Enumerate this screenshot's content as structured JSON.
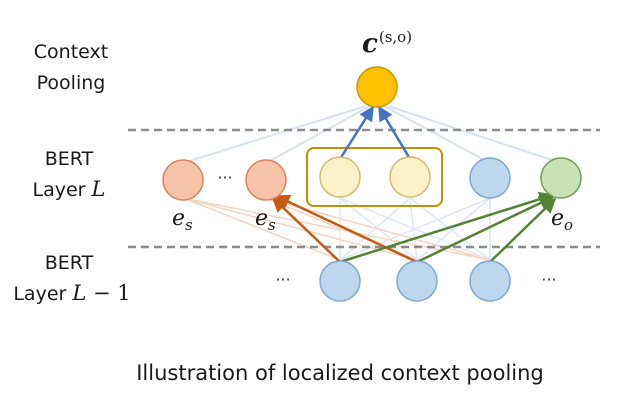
{
  "diagram": {
    "labels": {
      "context_pooling": [
        "Context",
        "Pooling"
      ],
      "bert_layer_l": [
        "BERT",
        "Layer"
      ],
      "bert_layer_l_minus_1": [
        "BERT",
        "Layer"
      ]
    },
    "math": {
      "layer_l_var": "L",
      "layer_l_minus_1_var": "L",
      "layer_l_minus_1_op": " − 1",
      "context_vector_base": "c",
      "context_vector_sup": "(s,o)",
      "es_base": "e",
      "es_sub": "s",
      "eo_base": "e",
      "eo_sub": "o"
    },
    "ellipsis": "···",
    "caption": "Illustration of localized context pooling",
    "colors": {
      "context_node": "#FFC000",
      "context_node_stroke": "#C99700",
      "subject_node": "#F7C3A8",
      "subject_node_stroke": "#D8825A",
      "attended_node": "#FFF1C7",
      "attended_node_stroke": "#D7B86B",
      "plain_node": "#BDD7EE",
      "plain_node_stroke": "#7FA7CF",
      "object_node": "#C7E2B4",
      "object_node_stroke": "#6E9E52",
      "pool_arrow": "#4472C4",
      "subject_arrow": "#C55A11",
      "object_arrow": "#548235",
      "faint_line": "#D6E4F2",
      "faint_orange": "#F4D5C4",
      "highlight_box": "#BF9000",
      "separator": "#7F7F7F"
    }
  }
}
